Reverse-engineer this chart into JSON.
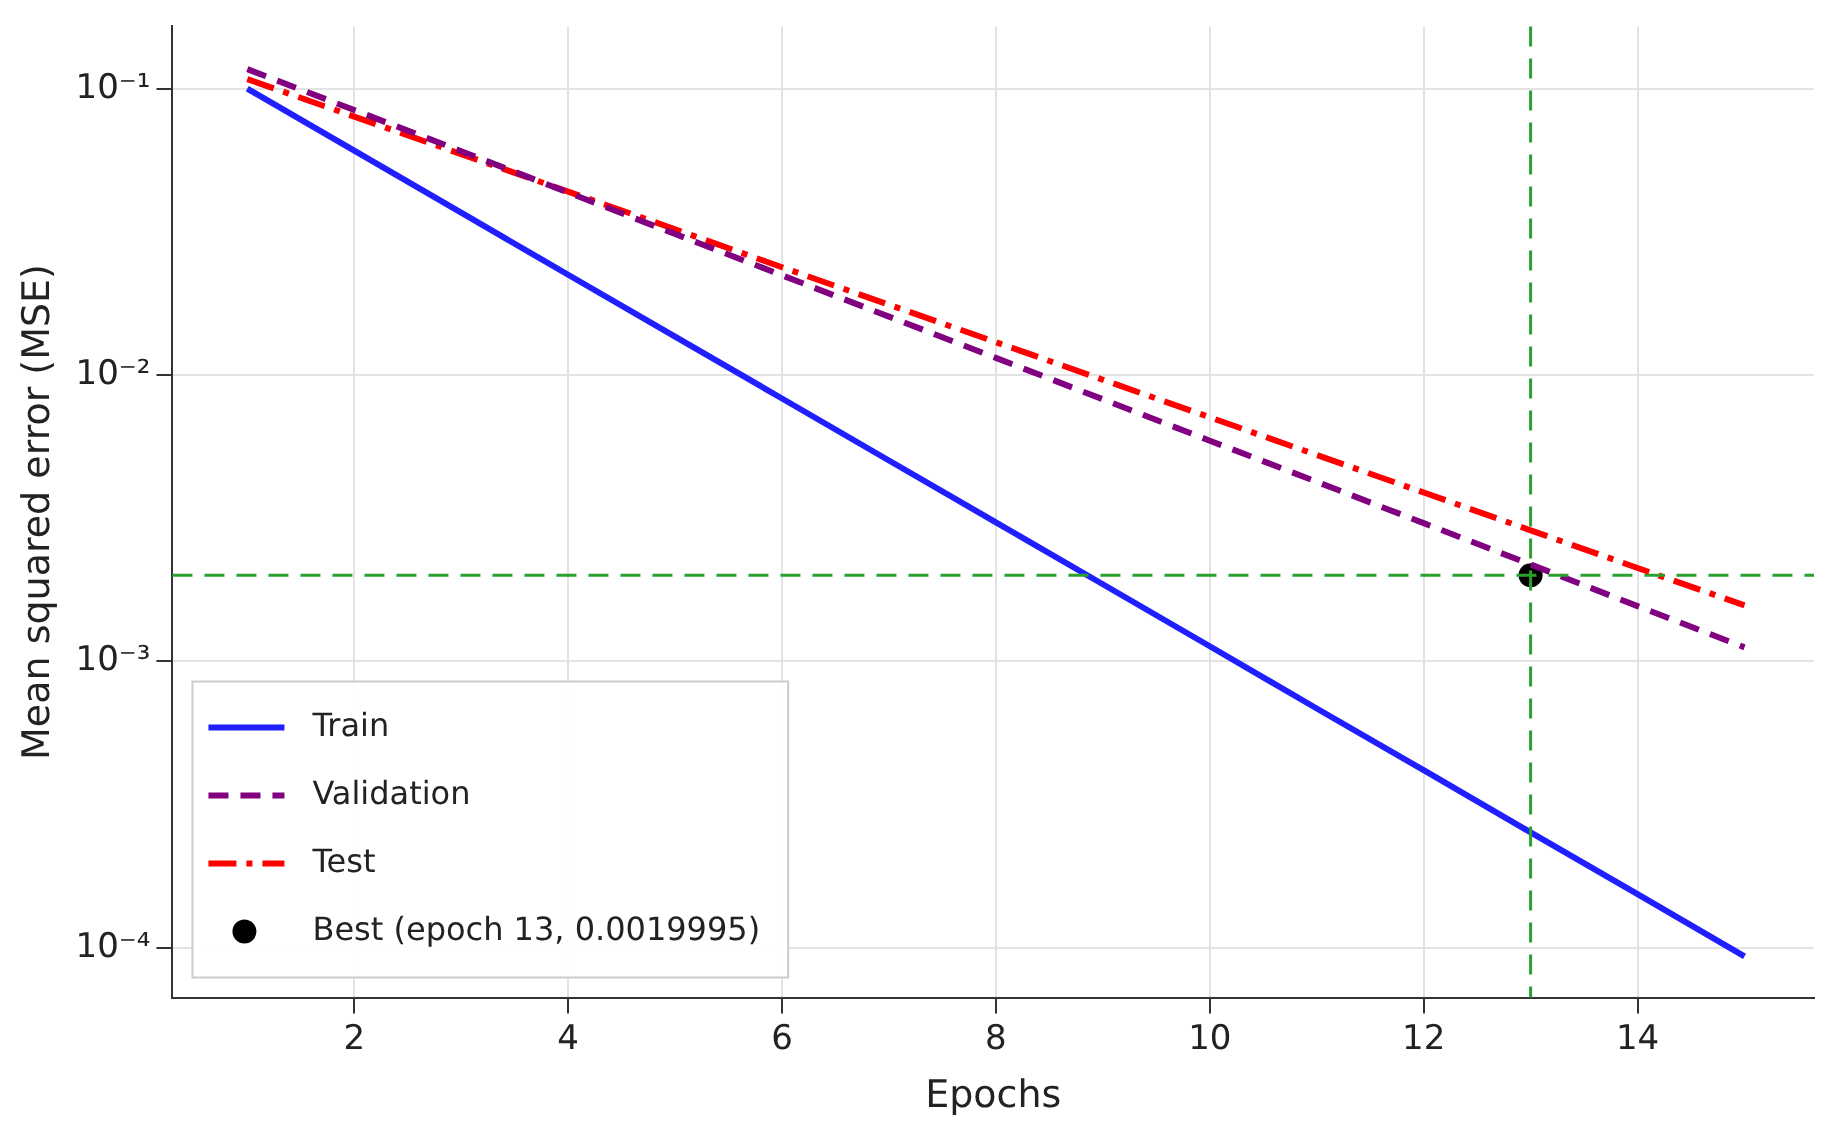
{
  "chart_data": {
    "type": "line",
    "xlabel": "Epochs",
    "ylabel": "Mean squared error (MSE)",
    "log": "y",
    "grid": true,
    "legend": "bottom left",
    "xlim": [
      0.3,
      15.65
    ],
    "xticks": [
      2,
      4,
      6,
      8,
      10,
      12,
      14
    ],
    "ylim": [
      6.7e-05,
      0.165
    ],
    "yticks": [
      {
        "value": 0.0001,
        "label": "10⁻⁴"
      },
      {
        "value": 0.001,
        "label": "10⁻³"
      },
      {
        "value": 0.01,
        "label": "10⁻²"
      },
      {
        "value": 0.1,
        "label": "10⁻¹"
      }
    ],
    "x": [
      1,
      2,
      3,
      4,
      5,
      6,
      7,
      8,
      9,
      10,
      11,
      12,
      13,
      14,
      15
    ],
    "series": [
      {
        "name": "Train",
        "color": "#1f1fff",
        "line_style": "solid",
        "marker": "none",
        "values": [
          0.1,
          0.0608,
          0.0369,
          0.0224,
          0.01363,
          0.00828,
          0.00503,
          0.00306,
          0.00186,
          0.00113,
          0.000685,
          0.000417,
          0.000253,
          0.000154,
          9.34e-05
        ]
      },
      {
        "name": "Validation",
        "color": "#800080",
        "line_style": "dashed",
        "marker": "none",
        "values": [
          0.117,
          0.0842,
          0.0605,
          0.0434,
          0.0311,
          0.0223,
          0.016,
          0.01148,
          0.00823,
          0.0059,
          0.00424,
          0.00304,
          0.00218,
          0.00156,
          0.00112
        ]
      },
      {
        "name": "Test",
        "color": "#ff0000",
        "line_style": "dashdot",
        "marker": "none",
        "values": [
          0.108,
          0.0799,
          0.0591,
          0.0437,
          0.0323,
          0.0238,
          0.0176,
          0.01303,
          0.00963,
          0.00712,
          0.00526,
          0.00389,
          0.00287,
          0.00212,
          0.00157
        ]
      },
      {
        "name": "Best (epoch 13, 0.0019995)",
        "type": "scatter",
        "color": "#000000",
        "marker": "circle",
        "x": [
          13
        ],
        "values": [
          0.0019995
        ]
      }
    ],
    "ref_lines": [
      {
        "axis": "x",
        "value": 13,
        "color": "#2ca02c",
        "line_style": "dashed"
      },
      {
        "axis": "y",
        "value": 0.002,
        "color": "#2ca02c",
        "line_style": "dashed"
      }
    ]
  }
}
